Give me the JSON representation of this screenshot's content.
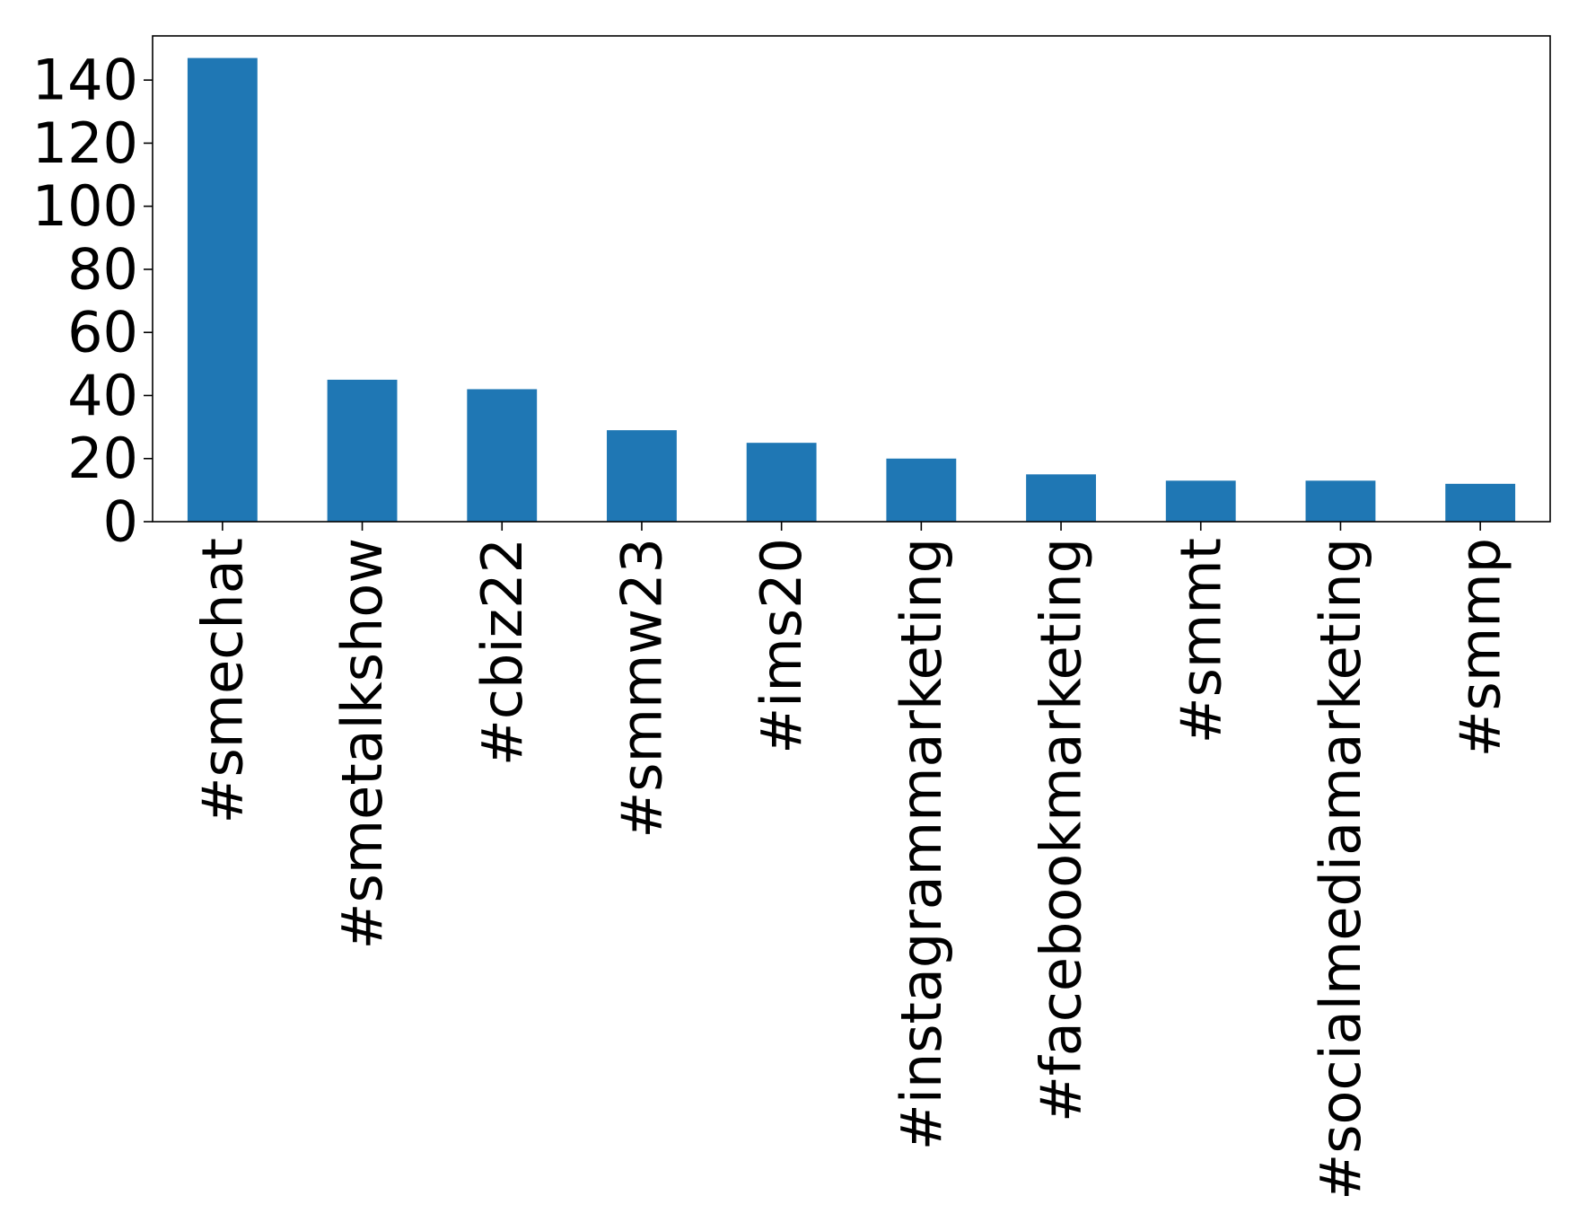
{
  "chart_data": {
    "type": "bar",
    "title": "",
    "xlabel": "",
    "ylabel": "",
    "categories": [
      "#smechat",
      "#smetalkshow",
      "#cbiz22",
      "#smmw23",
      "#ims20",
      "#instagrammarketing",
      "#facebookmarketing",
      "#smmt",
      "#socialmediamarketing",
      "#smmp"
    ],
    "values": [
      147,
      45,
      42,
      29,
      25,
      20,
      15,
      13,
      13,
      12
    ],
    "ylim": [
      0,
      154
    ],
    "yticks": [
      0,
      20,
      40,
      60,
      80,
      100,
      120,
      140
    ],
    "ytick_labels": [
      "0",
      "20",
      "40",
      "60",
      "80",
      "100",
      "120",
      "140"
    ],
    "bar_color": "#1f77b4",
    "grid": false,
    "legend": "none"
  }
}
